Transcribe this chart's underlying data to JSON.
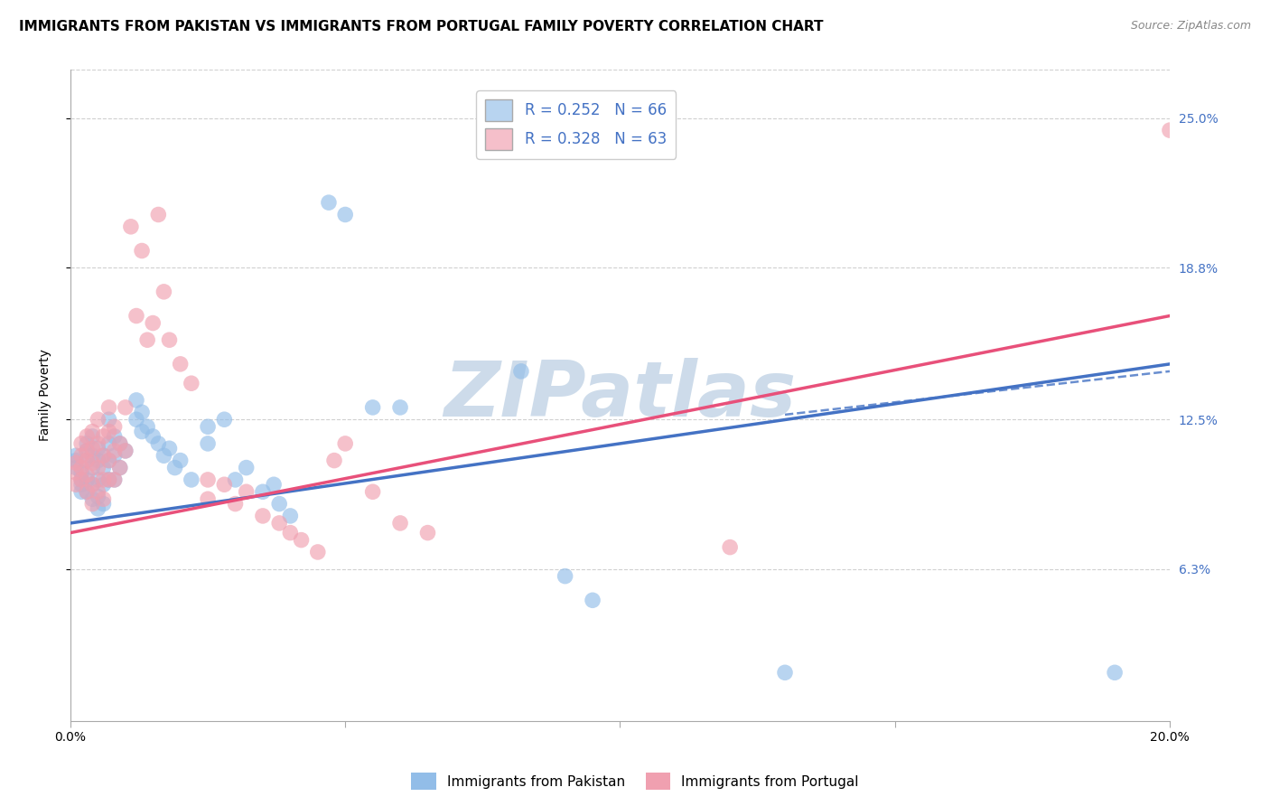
{
  "title": "IMMIGRANTS FROM PAKISTAN VS IMMIGRANTS FROM PORTUGAL FAMILY POVERTY CORRELATION CHART",
  "source": "Source: ZipAtlas.com",
  "ylabel": "Family Poverty",
  "xlim": [
    0.0,
    0.2
  ],
  "ylim": [
    0.0,
    0.27
  ],
  "y_ticks_right": [
    0.063,
    0.125,
    0.188,
    0.25
  ],
  "y_tick_labels_right": [
    "6.3%",
    "12.5%",
    "18.8%",
    "25.0%"
  ],
  "legend_entries": [
    {
      "label": "R = 0.252   N = 66",
      "color": "#b8d4f0"
    },
    {
      "label": "R = 0.328   N = 63",
      "color": "#f5bfca"
    }
  ],
  "pakistan_color": "#92bde8",
  "portugal_color": "#f0a0b0",
  "pakistan_line_color": "#4472c4",
  "portugal_line_color": "#e8507a",
  "pakistan_scatter": [
    [
      0.001,
      0.11
    ],
    [
      0.001,
      0.108
    ],
    [
      0.001,
      0.105
    ],
    [
      0.002,
      0.103
    ],
    [
      0.002,
      0.1
    ],
    [
      0.002,
      0.098
    ],
    [
      0.002,
      0.095
    ],
    [
      0.003,
      0.115
    ],
    [
      0.003,
      0.112
    ],
    [
      0.003,
      0.108
    ],
    [
      0.003,
      0.1
    ],
    [
      0.003,
      0.095
    ],
    [
      0.004,
      0.118
    ],
    [
      0.004,
      0.11
    ],
    [
      0.004,
      0.105
    ],
    [
      0.004,
      0.098
    ],
    [
      0.004,
      0.092
    ],
    [
      0.005,
      0.113
    ],
    [
      0.005,
      0.108
    ],
    [
      0.005,
      0.1
    ],
    [
      0.005,
      0.093
    ],
    [
      0.005,
      0.088
    ],
    [
      0.006,
      0.11
    ],
    [
      0.006,
      0.105
    ],
    [
      0.006,
      0.098
    ],
    [
      0.006,
      0.09
    ],
    [
      0.007,
      0.125
    ],
    [
      0.007,
      0.115
    ],
    [
      0.007,
      0.108
    ],
    [
      0.007,
      0.1
    ],
    [
      0.008,
      0.118
    ],
    [
      0.008,
      0.11
    ],
    [
      0.008,
      0.1
    ],
    [
      0.009,
      0.115
    ],
    [
      0.009,
      0.105
    ],
    [
      0.01,
      0.112
    ],
    [
      0.012,
      0.133
    ],
    [
      0.012,
      0.125
    ],
    [
      0.013,
      0.128
    ],
    [
      0.013,
      0.12
    ],
    [
      0.014,
      0.122
    ],
    [
      0.015,
      0.118
    ],
    [
      0.016,
      0.115
    ],
    [
      0.017,
      0.11
    ],
    [
      0.018,
      0.113
    ],
    [
      0.019,
      0.105
    ],
    [
      0.02,
      0.108
    ],
    [
      0.022,
      0.1
    ],
    [
      0.025,
      0.122
    ],
    [
      0.025,
      0.115
    ],
    [
      0.028,
      0.125
    ],
    [
      0.03,
      0.1
    ],
    [
      0.032,
      0.105
    ],
    [
      0.035,
      0.095
    ],
    [
      0.037,
      0.098
    ],
    [
      0.038,
      0.09
    ],
    [
      0.04,
      0.085
    ],
    [
      0.047,
      0.215
    ],
    [
      0.05,
      0.21
    ],
    [
      0.055,
      0.13
    ],
    [
      0.06,
      0.13
    ],
    [
      0.082,
      0.145
    ],
    [
      0.09,
      0.06
    ],
    [
      0.095,
      0.05
    ],
    [
      0.13,
      0.02
    ],
    [
      0.19,
      0.02
    ]
  ],
  "portugal_scatter": [
    [
      0.001,
      0.107
    ],
    [
      0.001,
      0.103
    ],
    [
      0.001,
      0.098
    ],
    [
      0.002,
      0.115
    ],
    [
      0.002,
      0.11
    ],
    [
      0.002,
      0.105
    ],
    [
      0.002,
      0.1
    ],
    [
      0.003,
      0.118
    ],
    [
      0.003,
      0.112
    ],
    [
      0.003,
      0.108
    ],
    [
      0.003,
      0.102
    ],
    [
      0.003,
      0.095
    ],
    [
      0.004,
      0.12
    ],
    [
      0.004,
      0.113
    ],
    [
      0.004,
      0.107
    ],
    [
      0.004,
      0.098
    ],
    [
      0.004,
      0.09
    ],
    [
      0.005,
      0.125
    ],
    [
      0.005,
      0.115
    ],
    [
      0.005,
      0.105
    ],
    [
      0.005,
      0.095
    ],
    [
      0.006,
      0.118
    ],
    [
      0.006,
      0.11
    ],
    [
      0.006,
      0.1
    ],
    [
      0.006,
      0.092
    ],
    [
      0.007,
      0.13
    ],
    [
      0.007,
      0.12
    ],
    [
      0.007,
      0.108
    ],
    [
      0.007,
      0.1
    ],
    [
      0.008,
      0.122
    ],
    [
      0.008,
      0.112
    ],
    [
      0.008,
      0.1
    ],
    [
      0.009,
      0.115
    ],
    [
      0.009,
      0.105
    ],
    [
      0.01,
      0.13
    ],
    [
      0.01,
      0.112
    ],
    [
      0.011,
      0.205
    ],
    [
      0.012,
      0.168
    ],
    [
      0.013,
      0.195
    ],
    [
      0.014,
      0.158
    ],
    [
      0.015,
      0.165
    ],
    [
      0.016,
      0.21
    ],
    [
      0.017,
      0.178
    ],
    [
      0.018,
      0.158
    ],
    [
      0.02,
      0.148
    ],
    [
      0.022,
      0.14
    ],
    [
      0.025,
      0.1
    ],
    [
      0.025,
      0.092
    ],
    [
      0.028,
      0.098
    ],
    [
      0.03,
      0.09
    ],
    [
      0.032,
      0.095
    ],
    [
      0.035,
      0.085
    ],
    [
      0.038,
      0.082
    ],
    [
      0.04,
      0.078
    ],
    [
      0.042,
      0.075
    ],
    [
      0.045,
      0.07
    ],
    [
      0.048,
      0.108
    ],
    [
      0.05,
      0.115
    ],
    [
      0.055,
      0.095
    ],
    [
      0.06,
      0.082
    ],
    [
      0.065,
      0.078
    ],
    [
      0.12,
      0.072
    ],
    [
      0.2,
      0.245
    ]
  ],
  "pakistan_line": [
    [
      0.0,
      0.082
    ],
    [
      0.2,
      0.148
    ]
  ],
  "portugal_line": [
    [
      0.0,
      0.078
    ],
    [
      0.2,
      0.168
    ]
  ],
  "pakistan_ci_dashed": [
    [
      0.13,
      0.127
    ],
    [
      0.2,
      0.145
    ]
  ],
  "watermark_text": "ZIPatlas",
  "watermark_color": "#c8d8e8",
  "background_color": "#ffffff",
  "grid_color": "#d0d0d0",
  "title_fontsize": 11,
  "axis_label_fontsize": 10,
  "tick_fontsize": 10,
  "legend_fontsize": 12
}
